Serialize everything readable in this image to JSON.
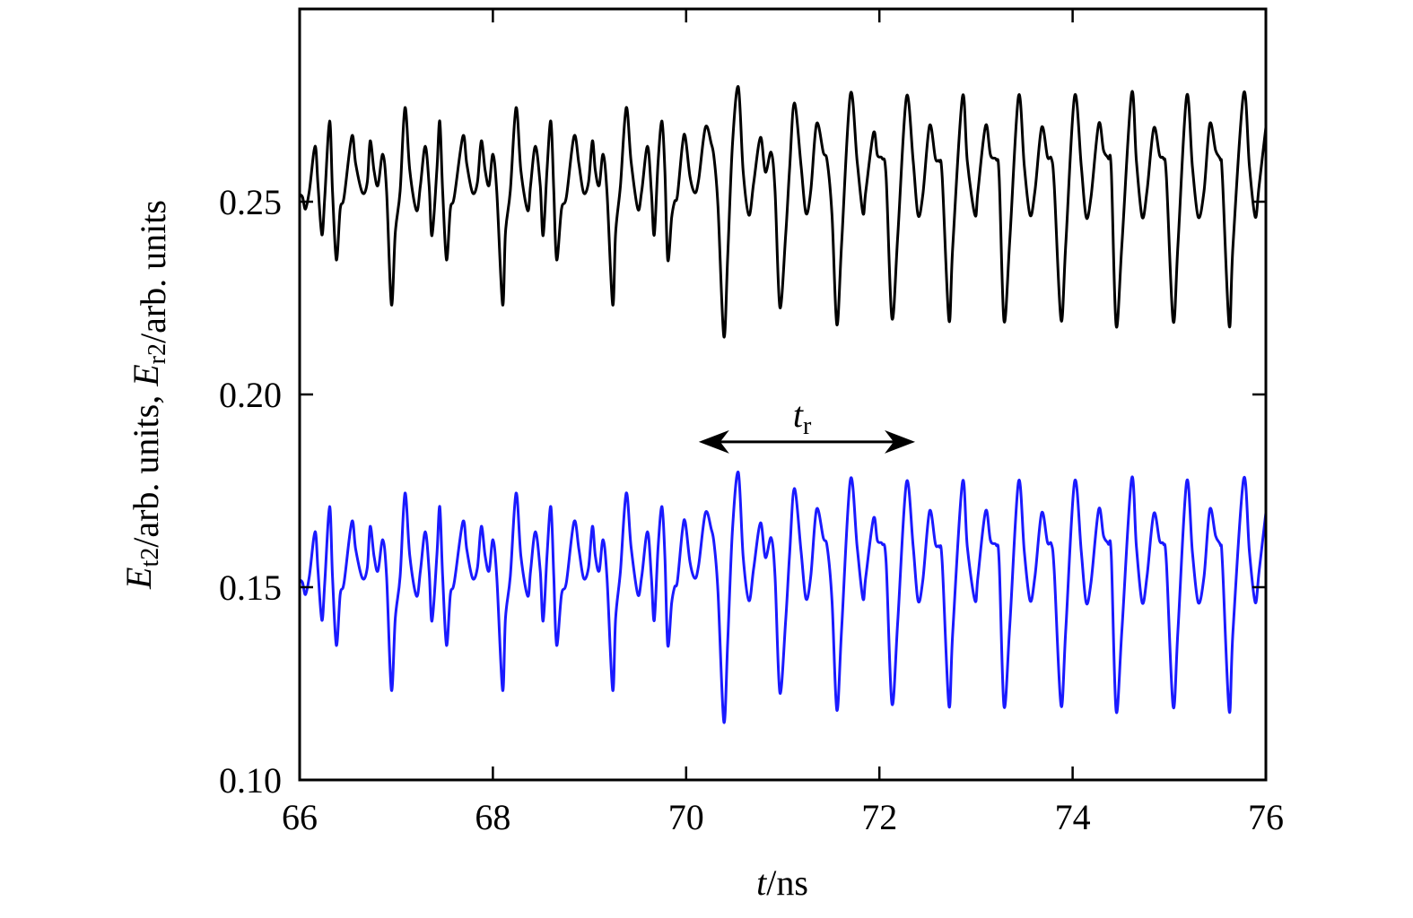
{
  "chart_data": {
    "type": "line",
    "title": "",
    "xlabel_parts": [
      {
        "text": "t",
        "italic": true
      },
      {
        "text": "/ns",
        "italic": false
      }
    ],
    "ylabel_parts": [
      {
        "text": "E",
        "italic": true
      },
      {
        "text": "t2",
        "sub": true
      },
      {
        "text": "/arb. units, "
      },
      {
        "text": "E",
        "italic": true
      },
      {
        "text": "r2",
        "sub": true
      },
      {
        "text": "/arb. units"
      }
    ],
    "xlim": [
      66,
      76
    ],
    "ylim": [
      0.1,
      0.3
    ],
    "xticks": [
      "66",
      "68",
      "70",
      "72",
      "74",
      "76"
    ],
    "yticks": [
      "0.10",
      "0.15",
      "0.20",
      "0.25"
    ],
    "grid": false,
    "legend": "none",
    "x": [
      66.0,
      66.03,
      66.06,
      66.1,
      66.16,
      66.19,
      66.23,
      66.26,
      66.31,
      66.34,
      66.38,
      66.42,
      66.46,
      66.54,
      66.58,
      66.65,
      66.7,
      66.73,
      66.77,
      66.81,
      66.86,
      66.9,
      66.95,
      66.99,
      67.04,
      67.09,
      67.14,
      67.21,
      67.25,
      67.3,
      67.34,
      67.37,
      67.42,
      67.45,
      67.48,
      67.52,
      67.56,
      67.6,
      67.69,
      67.73,
      67.79,
      67.84,
      67.88,
      67.92,
      67.96,
      68.0,
      68.04,
      68.1,
      68.13,
      68.18,
      68.24,
      68.29,
      68.36,
      68.39,
      68.44,
      68.49,
      68.52,
      68.56,
      68.6,
      68.63,
      68.66,
      68.71,
      68.76,
      68.84,
      68.89,
      68.94,
      68.99,
      69.03,
      69.06,
      69.1,
      69.14,
      69.18,
      69.24,
      69.27,
      69.32,
      69.38,
      69.43,
      69.5,
      69.54,
      69.6,
      69.64,
      69.67,
      69.71,
      69.75,
      69.78,
      69.81,
      69.85,
      69.88,
      69.91,
      69.96,
      69.99,
      70.04,
      70.09,
      70.13,
      70.2,
      70.26,
      70.29,
      70.33,
      70.39,
      70.43,
      70.48,
      70.54,
      70.59,
      70.65,
      70.7,
      70.77,
      70.82,
      70.88,
      70.92,
      70.97,
      71.03,
      71.07,
      71.12,
      71.19,
      71.24,
      71.29,
      71.35,
      71.42,
      71.46,
      71.51,
      71.56,
      71.61,
      71.7,
      71.77,
      71.83,
      71.86,
      71.94,
      71.98,
      72.03,
      72.07,
      72.13,
      72.19,
      72.28,
      72.35,
      72.4,
      72.45,
      72.52,
      72.58,
      72.62,
      72.65,
      72.72,
      72.76,
      72.86,
      72.91,
      72.99,
      73.02,
      73.1,
      73.15,
      73.21,
      73.24,
      73.29,
      73.35,
      73.44,
      73.5,
      73.56,
      73.61,
      73.68,
      73.74,
      73.78,
      73.81,
      73.88,
      73.93,
      74.02,
      74.09,
      74.14,
      74.19,
      74.27,
      74.32,
      74.37,
      74.4,
      74.45,
      74.51,
      74.61,
      74.66,
      74.72,
      74.77,
      74.84,
      74.9,
      74.94,
      74.97,
      75.04,
      75.09,
      75.18,
      75.24,
      75.3,
      75.36,
      75.42,
      75.48,
      75.53,
      75.55,
      75.62,
      75.66,
      75.77,
      75.83,
      75.89,
      75.93,
      76.0
    ],
    "series": [
      {
        "color": "#000000",
        "values": [
          0.2519,
          0.2512,
          0.2481,
          0.2528,
          0.2644,
          0.2542,
          0.2414,
          0.2512,
          0.2709,
          0.2528,
          0.2349,
          0.2481,
          0.2512,
          0.267,
          0.2598,
          0.2523,
          0.2551,
          0.2658,
          0.2581,
          0.2542,
          0.2623,
          0.2528,
          0.2233,
          0.2419,
          0.2528,
          0.2744,
          0.2581,
          0.2477,
          0.2542,
          0.2644,
          0.2542,
          0.2412,
          0.2581,
          0.2709,
          0.2528,
          0.2349,
          0.2481,
          0.2512,
          0.267,
          0.2598,
          0.2523,
          0.2551,
          0.2658,
          0.2581,
          0.2542,
          0.2623,
          0.2528,
          0.2233,
          0.2419,
          0.2528,
          0.2744,
          0.2581,
          0.2477,
          0.2542,
          0.2644,
          0.2542,
          0.2412,
          0.2581,
          0.2709,
          0.2528,
          0.2349,
          0.2481,
          0.2512,
          0.267,
          0.2598,
          0.2523,
          0.2551,
          0.2658,
          0.2581,
          0.2542,
          0.2623,
          0.2528,
          0.2233,
          0.2419,
          0.2542,
          0.2744,
          0.2605,
          0.2481,
          0.2528,
          0.2644,
          0.2528,
          0.2414,
          0.2605,
          0.2709,
          0.2581,
          0.2349,
          0.2458,
          0.25,
          0.2516,
          0.2644,
          0.267,
          0.2565,
          0.2523,
          0.2558,
          0.2693,
          0.2651,
          0.2612,
          0.2488,
          0.2151,
          0.2356,
          0.2651,
          0.2798,
          0.2581,
          0.2465,
          0.2551,
          0.2667,
          0.2577,
          0.2628,
          0.2528,
          0.2226,
          0.2412,
          0.2581,
          0.2756,
          0.2591,
          0.247,
          0.2528,
          0.2702,
          0.2628,
          0.2605,
          0.2465,
          0.2181,
          0.2395,
          0.2779,
          0.2605,
          0.247,
          0.2528,
          0.2679,
          0.2621,
          0.2612,
          0.2565,
          0.2198,
          0.2412,
          0.2772,
          0.2605,
          0.2465,
          0.2519,
          0.2698,
          0.2612,
          0.2605,
          0.2565,
          0.2193,
          0.2388,
          0.2772,
          0.2605,
          0.2465,
          0.2528,
          0.2698,
          0.2621,
          0.2609,
          0.2565,
          0.2191,
          0.2402,
          0.2774,
          0.2591,
          0.2465,
          0.2528,
          0.2693,
          0.2616,
          0.2612,
          0.2542,
          0.2193,
          0.2395,
          0.2774,
          0.2591,
          0.246,
          0.2512,
          0.2702,
          0.2633,
          0.2612,
          0.2581,
          0.2179,
          0.2388,
          0.2781,
          0.2605,
          0.246,
          0.2528,
          0.2691,
          0.2621,
          0.2612,
          0.2565,
          0.2191,
          0.2388,
          0.2774,
          0.2591,
          0.246,
          0.2528,
          0.2702,
          0.2633,
          0.2609,
          0.2565,
          0.2179,
          0.2388,
          0.2781,
          0.2591,
          0.246,
          0.2542,
          0.2693
        ]
      },
      {
        "color": "#1a1aff",
        "values": [
          0.1519,
          0.1512,
          0.1481,
          0.1528,
          0.1644,
          0.1542,
          0.1414,
          0.1512,
          0.1709,
          0.1528,
          0.1349,
          0.1481,
          0.1512,
          0.167,
          0.1598,
          0.1523,
          0.1551,
          0.1658,
          0.1581,
          0.1542,
          0.1623,
          0.1528,
          0.1233,
          0.1419,
          0.1528,
          0.1744,
          0.1581,
          0.1477,
          0.1542,
          0.1644,
          0.1542,
          0.1412,
          0.1581,
          0.1709,
          0.1528,
          0.1349,
          0.1481,
          0.1512,
          0.167,
          0.1598,
          0.1523,
          0.1551,
          0.1658,
          0.1581,
          0.1542,
          0.1623,
          0.1528,
          0.1233,
          0.1419,
          0.1528,
          0.1744,
          0.1581,
          0.1477,
          0.1542,
          0.1644,
          0.1542,
          0.1412,
          0.1581,
          0.1709,
          0.1528,
          0.1349,
          0.1481,
          0.1512,
          0.167,
          0.1598,
          0.1523,
          0.1551,
          0.1658,
          0.1581,
          0.1542,
          0.1623,
          0.1528,
          0.1233,
          0.1419,
          0.1542,
          0.1744,
          0.1605,
          0.1481,
          0.1528,
          0.1644,
          0.1528,
          0.1414,
          0.1605,
          0.1709,
          0.1581,
          0.1349,
          0.1458,
          0.15,
          0.1516,
          0.1644,
          0.167,
          0.1565,
          0.1523,
          0.1558,
          0.1693,
          0.1651,
          0.1612,
          0.1488,
          0.1151,
          0.1356,
          0.1651,
          0.1798,
          0.1581,
          0.1465,
          0.1551,
          0.1667,
          0.1577,
          0.1628,
          0.1528,
          0.1226,
          0.1412,
          0.1581,
          0.1756,
          0.1591,
          0.147,
          0.1528,
          0.1702,
          0.1628,
          0.1605,
          0.1465,
          0.1181,
          0.1395,
          0.1779,
          0.1605,
          0.147,
          0.1528,
          0.1679,
          0.1621,
          0.1612,
          0.1565,
          0.1198,
          0.1412,
          0.1772,
          0.1605,
          0.1465,
          0.1519,
          0.1698,
          0.1612,
          0.1605,
          0.1565,
          0.1193,
          0.1388,
          0.1772,
          0.1605,
          0.1465,
          0.1528,
          0.1698,
          0.1621,
          0.1609,
          0.1565,
          0.1191,
          0.1402,
          0.1774,
          0.1591,
          0.1465,
          0.1528,
          0.1693,
          0.1616,
          0.1612,
          0.1542,
          0.1193,
          0.1395,
          0.1774,
          0.1591,
          0.146,
          0.1512,
          0.1702,
          0.1633,
          0.1612,
          0.1581,
          0.1179,
          0.1388,
          0.1781,
          0.1605,
          0.146,
          0.1528,
          0.1691,
          0.1621,
          0.1612,
          0.1565,
          0.1191,
          0.1388,
          0.1774,
          0.1591,
          0.146,
          0.1528,
          0.1702,
          0.1633,
          0.1609,
          0.1565,
          0.1179,
          0.1388,
          0.1781,
          0.1591,
          0.146,
          0.1542,
          0.1693
        ]
      }
    ],
    "annotations": [
      {
        "type": "double-arrow",
        "x_from": 70.13,
        "x_to": 72.37,
        "y": 0.1877,
        "label": [
          {
            "text": "t",
            "italic": true
          },
          {
            "text": "r",
            "sub": true
          }
        ],
        "label_x": 71.2,
        "label_y": 0.194
      }
    ]
  }
}
